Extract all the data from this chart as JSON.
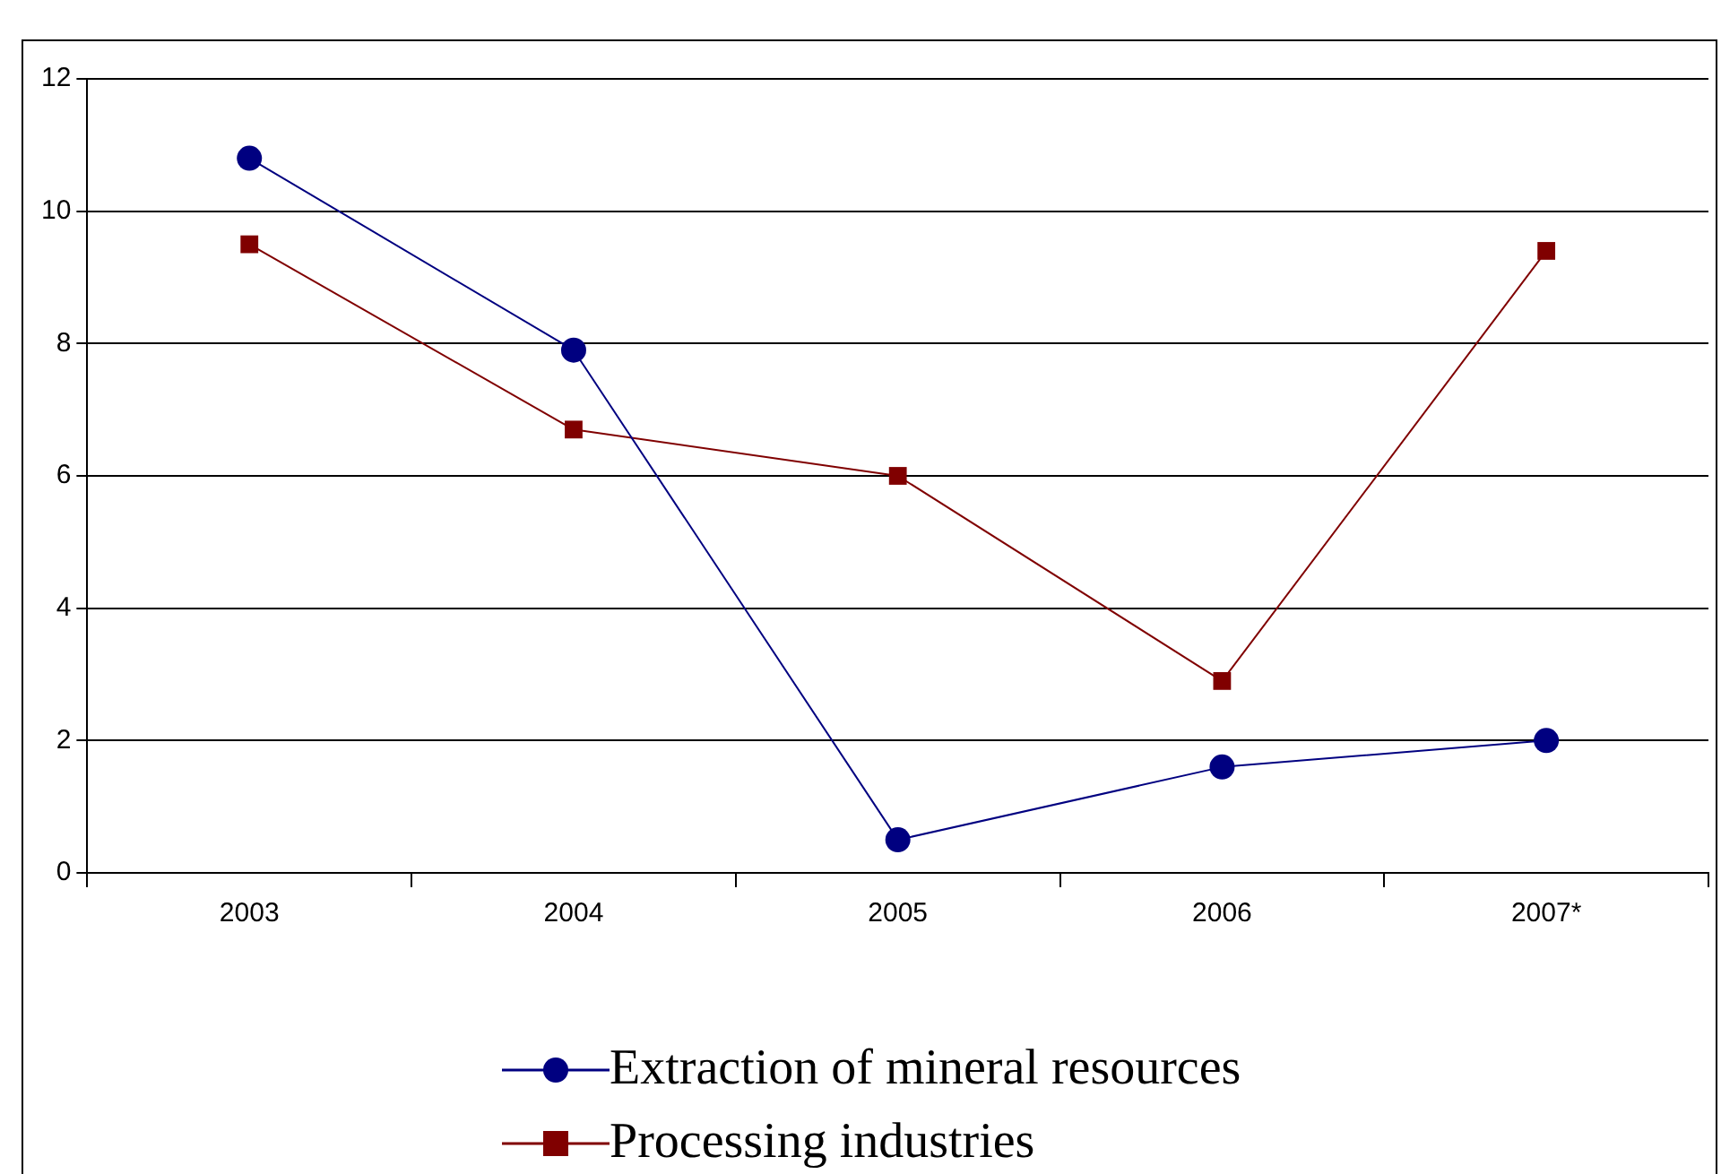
{
  "chart_data": {
    "type": "line",
    "categories": [
      "2003",
      "2004",
      "2005",
      "2006",
      "2007*"
    ],
    "series": [
      {
        "name": "Extraction of mineral resources",
        "color": "#000080",
        "marker": "circle",
        "values": [
          10.8,
          7.9,
          0.5,
          1.6,
          2.0
        ]
      },
      {
        "name": "Processing industries",
        "color": "#800000",
        "marker": "square",
        "values": [
          9.5,
          6.7,
          6.0,
          2.9,
          9.4
        ]
      }
    ],
    "ylim": [
      0,
      12
    ],
    "yticks": [
      0,
      2,
      4,
      6,
      8,
      10,
      12
    ],
    "grid": "y",
    "legend": "bottom",
    "line_style": "solid"
  }
}
